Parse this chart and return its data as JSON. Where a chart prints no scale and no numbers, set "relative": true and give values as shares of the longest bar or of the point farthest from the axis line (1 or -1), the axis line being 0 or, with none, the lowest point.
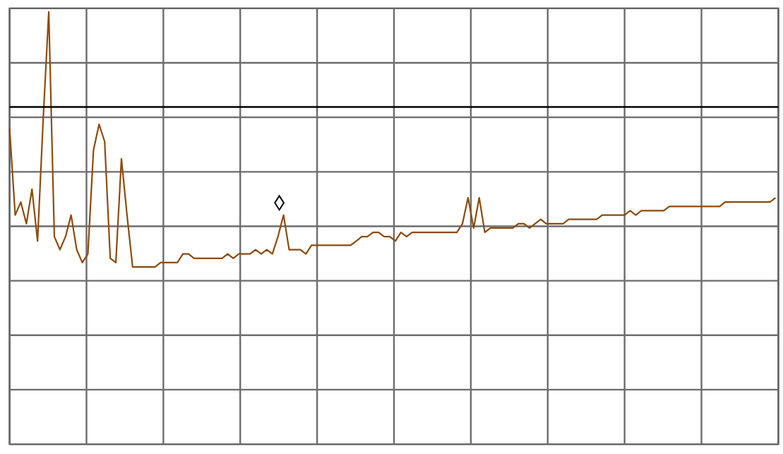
{
  "chart_data": {
    "type": "line",
    "relative": true,
    "grid": true,
    "marker": "none",
    "line_style": "solid",
    "categories": [
      null,
      null,
      null,
      null,
      null,
      null,
      null,
      null,
      null,
      null,
      null,
      null,
      null,
      null,
      null,
      null,
      null,
      null,
      null,
      null,
      null,
      null,
      null,
      null,
      null,
      null,
      null,
      null,
      null,
      null,
      null,
      null,
      null,
      null,
      null,
      null,
      null,
      null,
      null,
      null,
      null,
      null,
      null,
      null,
      null,
      null,
      null,
      null,
      null,
      null,
      null,
      null,
      null,
      null,
      null,
      null,
      null,
      null,
      null,
      null,
      null,
      null,
      null,
      null,
      null,
      null,
      null,
      null,
      null,
      null,
      null,
      null,
      null,
      null,
      null,
      null,
      null,
      null,
      null,
      null,
      null,
      null,
      null,
      null,
      null,
      null,
      null,
      null,
      null,
      null,
      null,
      null,
      null,
      null,
      null,
      null,
      null,
      null,
      null,
      null,
      null,
      null,
      null,
      null,
      null,
      null,
      null,
      null,
      null,
      null,
      null,
      null,
      null,
      null,
      null,
      null,
      null,
      null,
      null,
      null,
      null,
      null,
      null,
      null,
      null,
      null,
      null,
      null,
      null,
      null,
      null,
      null,
      null,
      null,
      null,
      null,
      null,
      null
    ],
    "series": [
      {
        "color": "#8c4a0c",
        "values": [
          0.73,
          0.53,
          0.56,
          0.51,
          0.59,
          0.47,
          0.75,
          1.0,
          0.48,
          0.45,
          0.48,
          0.53,
          0.45,
          0.42,
          0.44,
          0.68,
          0.74,
          0.7,
          0.43,
          0.42,
          0.66,
          0.53,
          0.41,
          0.41,
          0.41,
          0.41,
          0.41,
          0.42,
          0.42,
          0.42,
          0.42,
          0.44,
          0.44,
          0.43,
          0.43,
          0.43,
          0.43,
          0.43,
          0.43,
          0.44,
          0.43,
          0.44,
          0.44,
          0.44,
          0.45,
          0.44,
          0.45,
          0.44,
          0.48,
          0.53,
          0.45,
          0.45,
          0.45,
          0.44,
          0.46,
          0.46,
          0.46,
          0.46,
          0.46,
          0.46,
          0.46,
          0.46,
          0.47,
          0.48,
          0.48,
          0.49,
          0.49,
          0.48,
          0.48,
          0.47,
          0.49,
          0.48,
          0.49,
          0.49,
          0.49,
          0.49,
          0.49,
          0.49,
          0.49,
          0.49,
          0.49,
          0.51,
          0.57,
          0.5,
          0.57,
          0.49,
          0.5,
          0.5,
          0.5,
          0.5,
          0.5,
          0.51,
          0.51,
          0.5,
          0.51,
          0.52,
          0.51,
          0.51,
          0.51,
          0.51,
          0.52,
          0.52,
          0.52,
          0.52,
          0.52,
          0.52,
          0.53,
          0.53,
          0.53,
          0.53,
          0.53,
          0.54,
          0.53,
          0.54,
          0.54,
          0.54,
          0.54,
          0.54,
          0.55,
          0.55,
          0.55,
          0.55,
          0.55,
          0.55,
          0.55,
          0.55,
          0.55,
          0.55,
          0.56,
          0.56,
          0.56,
          0.56,
          0.56,
          0.56,
          0.56,
          0.56,
          0.56,
          0.57
        ]
      }
    ],
    "ref_lines": [
      {
        "axis": "y",
        "value": 0.78,
        "color": "#000000"
      }
    ]
  }
}
